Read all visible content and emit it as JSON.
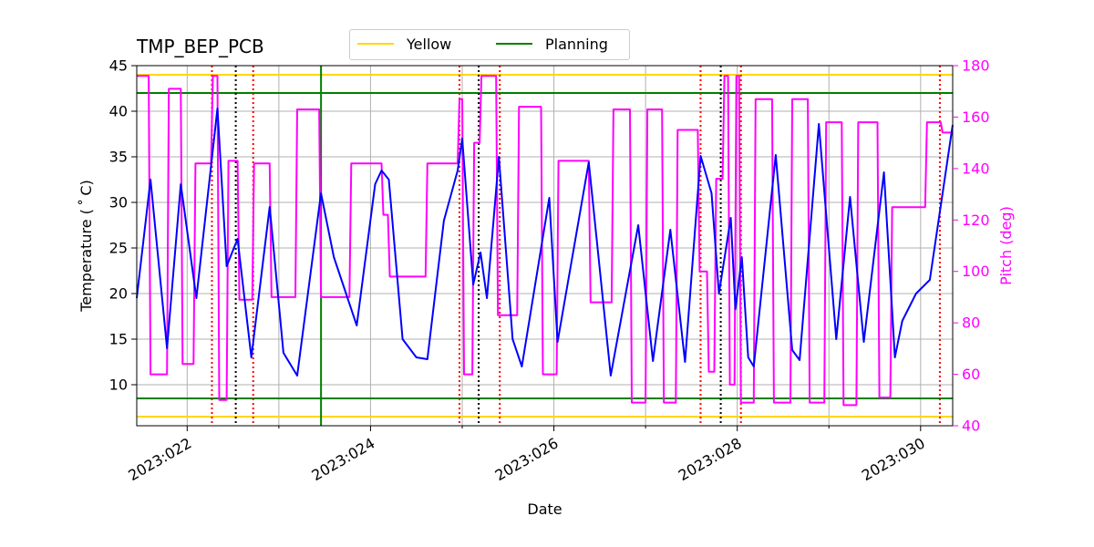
{
  "chart_data": {
    "type": "line",
    "title": "TMP_BEP_PCB",
    "xlabel": "Date",
    "ylabel": "Temperature ($^\\circ$C)",
    "ylabel_display": "Temperature ( ˚ C)",
    "y2label": "Pitch (deg)",
    "xlim": [
      21.45,
      30.35
    ],
    "ylim": [
      5.5,
      45
    ],
    "y2lim": [
      40,
      180
    ],
    "x_ticks": [
      {
        "value": 22,
        "label": "2023:022"
      },
      {
        "value": 24,
        "label": "2023:024"
      },
      {
        "value": 26,
        "label": "2023:026"
      },
      {
        "value": 28,
        "label": "2023:028"
      },
      {
        "value": 30,
        "label": "2023:030"
      }
    ],
    "y_ticks": [
      10,
      15,
      20,
      25,
      30,
      35,
      40,
      45
    ],
    "y2_ticks": [
      40,
      60,
      80,
      100,
      120,
      140,
      160,
      180
    ],
    "grid": true,
    "legend": {
      "placement": "top-center",
      "entries": [
        {
          "label": "Yellow",
          "color": "#ffd700"
        },
        {
          "label": "Planning",
          "color": "#008000"
        }
      ]
    },
    "limits": [
      {
        "name": "yellow-high",
        "value": 44,
        "color": "#ffd700"
      },
      {
        "name": "yellow-low",
        "value": 6.5,
        "color": "#ffd700"
      },
      {
        "name": "planning-high",
        "value": 42,
        "color": "#008000"
      },
      {
        "name": "planning-low",
        "value": 8.5,
        "color": "#008000"
      }
    ],
    "vlines": [
      {
        "x": 22.27,
        "color": "#ff0000",
        "style": "dotted"
      },
      {
        "x": 22.53,
        "color": "#000000",
        "style": "dotted"
      },
      {
        "x": 22.72,
        "color": "#ff0000",
        "style": "dotted"
      },
      {
        "x": 23.46,
        "color": "#008000",
        "style": "solid"
      },
      {
        "x": 24.97,
        "color": "#ff0000",
        "style": "dotted"
      },
      {
        "x": 25.18,
        "color": "#000000",
        "style": "dotted"
      },
      {
        "x": 25.41,
        "color": "#ff0000",
        "style": "dotted"
      },
      {
        "x": 27.6,
        "color": "#ff0000",
        "style": "dotted"
      },
      {
        "x": 27.82,
        "color": "#000000",
        "style": "dotted"
      },
      {
        "x": 28.04,
        "color": "#ff0000",
        "style": "dotted"
      },
      {
        "x": 30.21,
        "color": "#ff0000",
        "style": "dotted"
      }
    ],
    "series": [
      {
        "name": "Temperature",
        "axis": "left",
        "color": "#0000ff",
        "points": [
          [
            21.45,
            19.5
          ],
          [
            21.6,
            32.5
          ],
          [
            21.78,
            14.0
          ],
          [
            21.93,
            32.0
          ],
          [
            22.1,
            19.5
          ],
          [
            22.33,
            40.3
          ],
          [
            22.43,
            23.0
          ],
          [
            22.55,
            26.0
          ],
          [
            22.7,
            13.0
          ],
          [
            22.9,
            29.5
          ],
          [
            23.05,
            13.5
          ],
          [
            23.2,
            11.0
          ],
          [
            23.46,
            31.0
          ],
          [
            23.6,
            24.0
          ],
          [
            23.85,
            16.5
          ],
          [
            24.05,
            32.0
          ],
          [
            24.12,
            33.5
          ],
          [
            24.2,
            32.5
          ],
          [
            24.35,
            15.0
          ],
          [
            24.5,
            13.0
          ],
          [
            24.62,
            12.8
          ],
          [
            24.8,
            28.0
          ],
          [
            24.95,
            33.5
          ],
          [
            25.0,
            37.0
          ],
          [
            25.12,
            21.0
          ],
          [
            25.2,
            24.5
          ],
          [
            25.27,
            19.5
          ],
          [
            25.35,
            29.0
          ],
          [
            25.4,
            35.0
          ],
          [
            25.55,
            15.0
          ],
          [
            25.65,
            12.0
          ],
          [
            25.95,
            30.5
          ],
          [
            26.04,
            14.7
          ],
          [
            26.38,
            34.4
          ],
          [
            26.62,
            11.0
          ],
          [
            26.92,
            27.5
          ],
          [
            27.08,
            12.6
          ],
          [
            27.27,
            27.0
          ],
          [
            27.43,
            12.5
          ],
          [
            27.6,
            35.1
          ],
          [
            27.72,
            31.0
          ],
          [
            27.8,
            20.0
          ],
          [
            27.93,
            28.3
          ],
          [
            27.98,
            18.3
          ],
          [
            28.05,
            24.0
          ],
          [
            28.12,
            13.0
          ],
          [
            28.18,
            12.0
          ],
          [
            28.42,
            35.2
          ],
          [
            28.6,
            13.8
          ],
          [
            28.68,
            12.7
          ],
          [
            28.89,
            38.6
          ],
          [
            29.08,
            15.0
          ],
          [
            29.23,
            30.6
          ],
          [
            29.38,
            14.7
          ],
          [
            29.6,
            33.3
          ],
          [
            29.72,
            13.0
          ],
          [
            29.8,
            17.0
          ],
          [
            29.95,
            20.0
          ],
          [
            30.1,
            21.5
          ],
          [
            30.35,
            38.5
          ]
        ]
      },
      {
        "name": "Pitch",
        "axis": "right",
        "color": "#ff00ff",
        "points": [
          [
            21.45,
            176
          ],
          [
            21.58,
            176
          ],
          [
            21.6,
            60
          ],
          [
            21.78,
            60
          ],
          [
            21.8,
            171
          ],
          [
            21.93,
            171
          ],
          [
            21.95,
            64
          ],
          [
            22.07,
            64
          ],
          [
            22.09,
            142
          ],
          [
            22.26,
            142
          ],
          [
            22.28,
            176
          ],
          [
            22.33,
            176
          ],
          [
            22.35,
            50
          ],
          [
            22.43,
            50
          ],
          [
            22.45,
            143
          ],
          [
            22.55,
            143
          ],
          [
            22.57,
            89
          ],
          [
            22.71,
            89
          ],
          [
            22.73,
            142
          ],
          [
            22.9,
            142
          ],
          [
            22.92,
            90
          ],
          [
            23.18,
            90
          ],
          [
            23.2,
            163
          ],
          [
            23.44,
            163
          ],
          [
            23.46,
            90
          ],
          [
            23.77,
            90
          ],
          [
            23.79,
            142
          ],
          [
            24.12,
            142
          ],
          [
            24.14,
            122
          ],
          [
            24.19,
            122
          ],
          [
            24.21,
            98
          ],
          [
            24.6,
            98
          ],
          [
            24.62,
            142
          ],
          [
            24.95,
            142
          ],
          [
            24.97,
            167
          ],
          [
            25.0,
            167
          ],
          [
            25.02,
            60
          ],
          [
            25.11,
            60
          ],
          [
            25.13,
            150
          ],
          [
            25.19,
            150
          ],
          [
            25.21,
            176
          ],
          [
            25.37,
            176
          ],
          [
            25.39,
            83
          ],
          [
            25.6,
            83
          ],
          [
            25.62,
            164
          ],
          [
            25.86,
            164
          ],
          [
            25.88,
            60
          ],
          [
            26.03,
            60
          ],
          [
            26.05,
            143
          ],
          [
            26.38,
            143
          ],
          [
            26.4,
            88
          ],
          [
            26.63,
            88
          ],
          [
            26.65,
            163
          ],
          [
            26.83,
            163
          ],
          [
            26.85,
            49
          ],
          [
            27.0,
            49
          ],
          [
            27.02,
            163
          ],
          [
            27.18,
            163
          ],
          [
            27.2,
            49
          ],
          [
            27.33,
            49
          ],
          [
            27.35,
            155
          ],
          [
            27.57,
            155
          ],
          [
            27.59,
            100
          ],
          [
            27.67,
            100
          ],
          [
            27.69,
            61
          ],
          [
            27.75,
            61
          ],
          [
            27.77,
            136
          ],
          [
            27.84,
            136
          ],
          [
            27.86,
            176
          ],
          [
            27.9,
            176
          ],
          [
            27.92,
            56
          ],
          [
            27.97,
            56
          ],
          [
            27.99,
            176
          ],
          [
            28.02,
            176
          ],
          [
            28.04,
            49
          ],
          [
            28.18,
            49
          ],
          [
            28.2,
            167
          ],
          [
            28.38,
            167
          ],
          [
            28.4,
            49
          ],
          [
            28.58,
            49
          ],
          [
            28.6,
            167
          ],
          [
            28.77,
            167
          ],
          [
            28.79,
            49
          ],
          [
            28.95,
            49
          ],
          [
            28.97,
            158
          ],
          [
            29.14,
            158
          ],
          [
            29.16,
            48
          ],
          [
            29.3,
            48
          ],
          [
            29.32,
            158
          ],
          [
            29.53,
            158
          ],
          [
            29.55,
            51
          ],
          [
            29.67,
            51
          ],
          [
            29.69,
            125
          ],
          [
            30.05,
            125
          ],
          [
            30.07,
            158
          ],
          [
            30.22,
            158
          ],
          [
            30.24,
            154
          ],
          [
            30.35,
            154
          ]
        ]
      }
    ]
  }
}
